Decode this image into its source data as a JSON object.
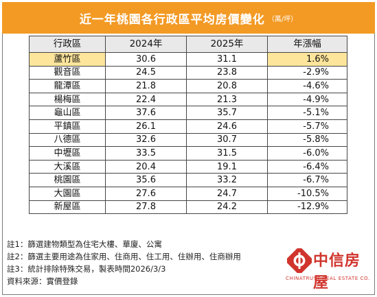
{
  "title": "近一年桃園各行政區平均房價變化",
  "title_unit": "（萬/坪）",
  "table": {
    "headers": [
      "行政區",
      "2024年",
      "2025年",
      "年漲幅"
    ],
    "rows": [
      [
        "蘆竹區",
        "30.6",
        "31.1",
        "1.6%"
      ],
      [
        "觀音區",
        "24.5",
        "23.8",
        "-2.9%"
      ],
      [
        "龍潭區",
        "21.8",
        "20.8",
        "-4.6%"
      ],
      [
        "楊梅區",
        "22.4",
        "21.3",
        "-4.9%"
      ],
      [
        "龜山區",
        "37.6",
        "35.7",
        "-5.1%"
      ],
      [
        "平鎮區",
        "26.1",
        "24.6",
        "-5.7%"
      ],
      [
        "八德區",
        "32.6",
        "30.7",
        "-5.8%"
      ],
      [
        "中壢區",
        "33.5",
        "31.5",
        "-6.0%"
      ],
      [
        "大溪區",
        "20.4",
        "19.1",
        "-6.4%"
      ],
      [
        "桃園區",
        "35.6",
        "33.2",
        "-6.7%"
      ],
      [
        "大園區",
        "27.6",
        "24.7",
        "-10.5%"
      ],
      [
        "新屋區",
        "27.8",
        "24.2",
        "-12.9%"
      ]
    ],
    "highlight_row_index": 0
  },
  "notes": [
    "註1：篩選建物類型為住宅大樓、華廈、公寓",
    "註2：篩選主要用途為住家用、住商用、住工用、住辦用、住商辦用",
    "註3：統計排除特殊交易，製表時間2026/3/3",
    "資料來源：實價登錄"
  ],
  "logo": {
    "name": "中信房屋",
    "english": "CHINATRUST REAL ESTATE CO."
  },
  "colors": {
    "title_bg": "#f39a25",
    "header_bg": "#e9e9e9",
    "highlight_bg": "#fde59b",
    "brand_red": "#d0342c"
  }
}
